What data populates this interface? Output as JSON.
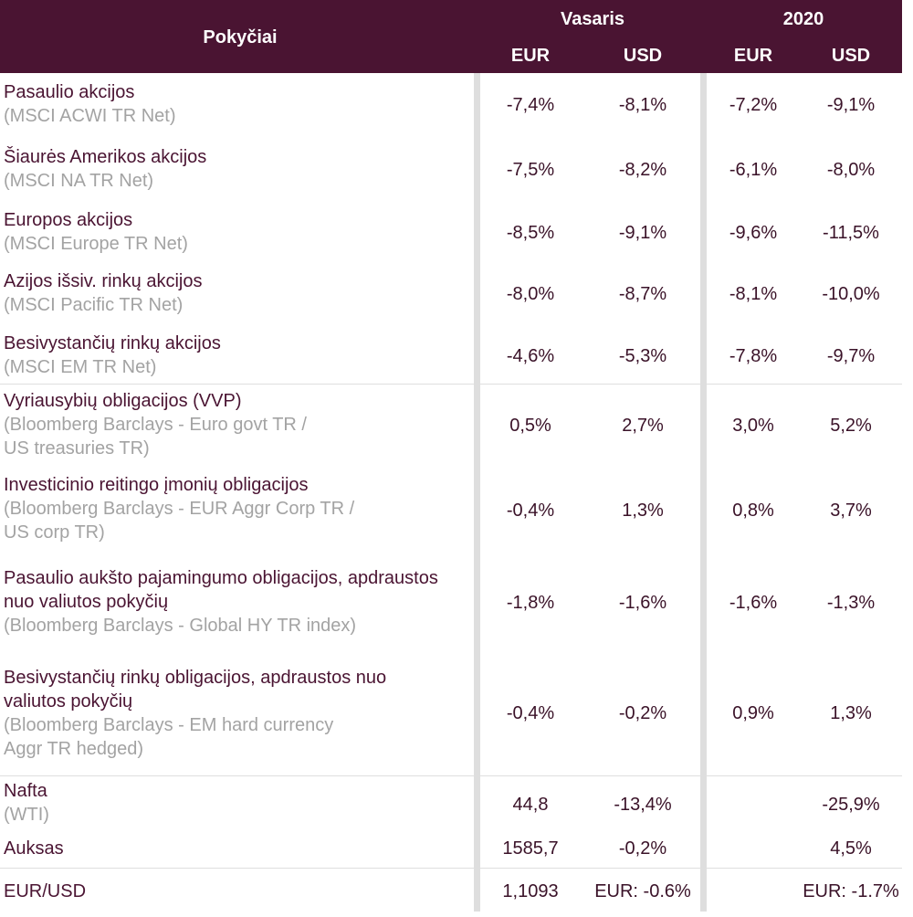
{
  "header": {
    "col_title": "Pokyčiai",
    "group1": "Vasaris",
    "group2": "2020",
    "eur1": "EUR",
    "usd1": "USD",
    "eur2": "EUR",
    "usd2": "USD"
  },
  "rows": [
    {
      "name": "Pasaulio akcijos",
      "idx": "(MSCI ACWI TR Net)",
      "v1": "-7,4%",
      "v2": "-8,1%",
      "v3": "-7,2%",
      "v4": "-9,1%"
    },
    {
      "name": "Šiaurės Amerikos akcijos",
      "idx": "(MSCI NA TR Net)",
      "v1": "-7,5%",
      "v2": "-8,2%",
      "v3": "-6,1%",
      "v4": "-8,0%"
    },
    {
      "name": "Europos akcijos",
      "idx": "(MSCI Europe TR Net)",
      "v1": "-8,5%",
      "v2": "-9,1%",
      "v3": "-9,6%",
      "v4": "-11,5%"
    },
    {
      "name": "Azijos išsiv. rinkų akcijos",
      "idx": "(MSCI Pacific TR Net)",
      "v1": "-8,0%",
      "v2": "-8,7%",
      "v3": "-8,1%",
      "v4": "-10,0%"
    },
    {
      "name": "Besivystančių rinkų akcijos",
      "idx": "(MSCI EM TR Net)",
      "v1": "-4,6%",
      "v2": "-5,3%",
      "v3": "-7,8%",
      "v4": "-9,7%"
    },
    {
      "name": "Vyriausybių obligacijos (VVP)",
      "idx1": "(Bloomberg Barclays - Euro govt TR /",
      "idx2": "US treasuries TR)",
      "v1": "0,5%",
      "v2": "2,7%",
      "v3": "3,0%",
      "v4": "5,2%"
    },
    {
      "name": "Investicinio reitingo įmonių obligacijos",
      "idx1": "(Bloomberg Barclays - EUR Aggr Corp TR /",
      "idx2": "US corp TR)",
      "v1": "-0,4%",
      "v2": "1,3%",
      "v3": "0,8%",
      "v4": "3,7%"
    },
    {
      "name1": "Pasaulio aukšto pajamingumo obligacijos, apdraustos",
      "name2": "nuo valiutos pokyčių",
      "idx": "(Bloomberg Barclays - Global HY TR index)",
      "v1": "-1,8%",
      "v2": "-1,6%",
      "v3": "-1,6%",
      "v4": "-1,3%"
    },
    {
      "name1": "Besivystančių rinkų obligacijos, apdraustos nuo",
      "name2": "valiutos pokyčių",
      "idx1": "(Bloomberg Barclays - EM hard currency",
      "idx2": "Aggr TR hedged)",
      "v1": "-0,4%",
      "v2": "-0,2%",
      "v3": "0,9%",
      "v4": "1,3%"
    },
    {
      "name": "Nafta",
      "idx": "(WTI)",
      "v1": "44,8",
      "v2": "-13,4%",
      "v3": "",
      "v4": "-25,9%"
    },
    {
      "name": "Auksas",
      "v1": "1585,7",
      "v2": "-0,2%",
      "v3": "",
      "v4": "4,5%"
    },
    {
      "name": "EUR/USD",
      "v1": "1,1093",
      "v2": "EUR: -0.6%",
      "v3": "",
      "v4": "EUR: -1.7%"
    }
  ]
}
